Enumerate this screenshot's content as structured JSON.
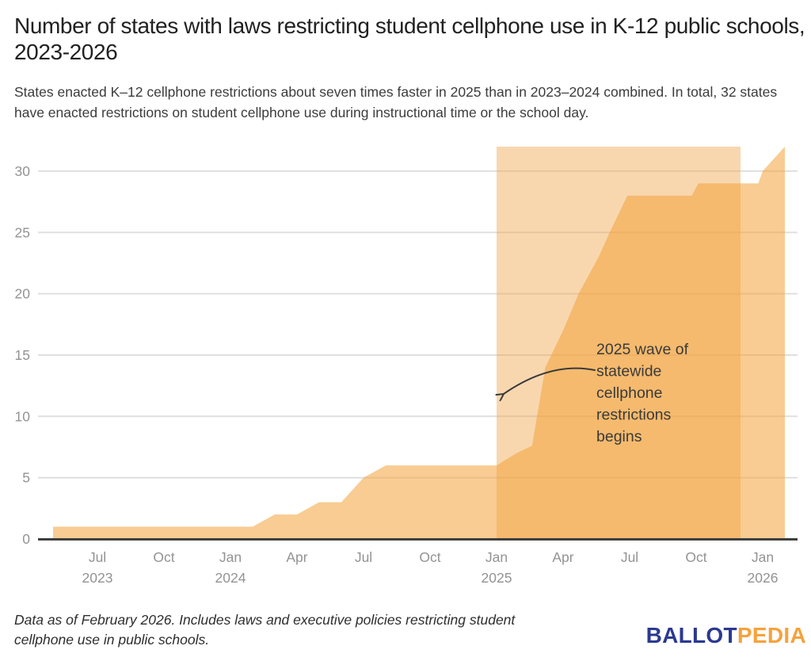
{
  "header": {
    "title": "Number of states with laws restricting student cellphone use in K-12 public schools, 2023-2026",
    "subtitle": "States enacted K–12 cellphone restrictions about seven times faster in 2025 than in 2023–2024 combined. In total, 32 states have enacted restrictions on student cellphone use during instructional time or the school day."
  },
  "footer": {
    "note": "Data as of February 2026. Includes laws and executive policies restricting student cellphone use in public schools.",
    "logo": {
      "part1": "BALLOT",
      "part2": "PEDIA",
      "part1_color": "#2B3990",
      "part2_color": "#F5A23C"
    }
  },
  "chart_data": {
    "type": "area",
    "title": "Number of states with laws restricting student cellphone use in K-12 public schools, 2023-2026",
    "subtitle": "States enacted K–12 cellphone restrictions about seven times faster in 2025 than in 2023–2024 combined. In total, 32 states have enacted restrictions on student cellphone use during instructional time or the school day.",
    "ylabel": "",
    "xlabel": "",
    "ylim": [
      0,
      32
    ],
    "grid": "horizontal",
    "months": [
      "2023-05",
      "2023-06",
      "2023-07",
      "2023-08",
      "2023-09",
      "2023-10",
      "2023-11",
      "2023-12",
      "2024-01",
      "2024-02",
      "2024-03",
      "2024-04",
      "2024-05",
      "2024-06",
      "2024-07",
      "2024-08",
      "2024-09",
      "2024-10",
      "2024-11",
      "2024-12",
      "2025-01",
      "2025-02",
      "2025-03",
      "2025-04",
      "2025-05",
      "2025-06",
      "2025-07",
      "2025-08",
      "2025-09",
      "2025-10",
      "2025-11",
      "2025-12",
      "2026-01",
      "2026-02"
    ],
    "values": [
      1,
      1,
      1,
      1,
      1,
      1,
      1,
      1,
      1,
      1,
      2,
      2,
      3,
      3,
      5,
      6,
      6,
      6,
      6,
      6,
      6,
      7,
      12,
      17,
      20,
      23,
      28,
      28,
      28,
      29,
      29,
      29,
      30,
      32
    ],
    "path_points": [
      [
        0,
        1
      ],
      [
        9,
        1
      ],
      [
        10,
        2
      ],
      [
        11,
        2
      ],
      [
        12,
        3
      ],
      [
        13,
        3
      ],
      [
        14,
        5
      ],
      [
        15,
        6
      ],
      [
        20,
        6
      ],
      [
        20.9,
        7
      ],
      [
        21.6,
        7.6
      ],
      [
        22.2,
        14
      ],
      [
        23,
        17
      ],
      [
        23.7,
        20
      ],
      [
        24.6,
        23
      ],
      [
        25.1,
        25
      ],
      [
        25.9,
        28
      ],
      [
        28.8,
        28
      ],
      [
        29.1,
        29
      ],
      [
        31.8,
        29
      ],
      [
        32,
        30
      ],
      [
        33,
        32
      ]
    ],
    "y_axis": {
      "ticks": [
        "0",
        "5",
        "10",
        "15",
        "20",
        "25",
        "30"
      ]
    },
    "x_axis": {
      "ticks": [
        {
          "label": "Jul",
          "year": "2023",
          "i": 2
        },
        {
          "label": "Oct",
          "year": "",
          "i": 5
        },
        {
          "label": "Jan",
          "year": "2024",
          "i": 8
        },
        {
          "label": "Apr",
          "year": "",
          "i": 11
        },
        {
          "label": "Jul",
          "year": "",
          "i": 14
        },
        {
          "label": "Oct",
          "year": "",
          "i": 17
        },
        {
          "label": "Jan",
          "year": "2025",
          "i": 20
        },
        {
          "label": "Apr",
          "year": "",
          "i": 23
        },
        {
          "label": "Jul",
          "year": "",
          "i": 26
        },
        {
          "label": "Oct",
          "year": "",
          "i": 29
        },
        {
          "label": "Jan",
          "year": "2026",
          "i": 32
        }
      ]
    },
    "highlight_band": {
      "start": "2025-01",
      "end": "2025-12",
      "start_i": 20,
      "end_i": 31,
      "meaning": "2025 wave of statewide cellphone restrictions"
    },
    "annotation": {
      "text": "2025 wave of statewide cellphone restrictions begins",
      "lines": [
        "2025 wave of",
        "statewide",
        "cellphone",
        "restrictions",
        "begins"
      ]
    },
    "colors": {
      "area_fill_visible": "#F8CC92",
      "band_fill_visible": "#F5D8AE",
      "overlap_fill_visible": "#F4BA6E",
      "area_fill_rgba": "rgba(242,162,57,0.55)",
      "band_fill_rgba": "rgba(240,167,77,0.45)",
      "gridline": "#DFDFDF",
      "baseline": "#3F3F3F",
      "axis_label": "#939393",
      "annotation_text": "#3A3A3A"
    }
  }
}
